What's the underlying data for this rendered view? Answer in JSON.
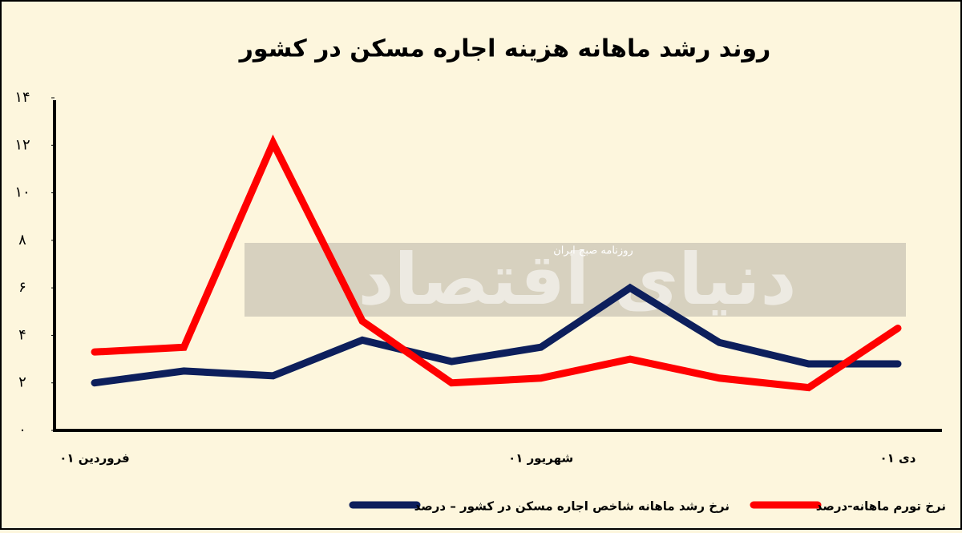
{
  "chart_data": {
    "type": "line",
    "title": "روند رشد ماهانه هزینه اجاره مسکن در کشور",
    "watermark": "دنیای اقتصاد",
    "watermark_subtitle": "روزنامه صبح ایران",
    "categories": [
      "فروردین ۰۱",
      null,
      null,
      null,
      null,
      "شهریور ۰۱",
      null,
      null,
      null,
      "دی ۰۱"
    ],
    "series": [
      {
        "name": "نرخ رشد ماهانه شاخص اجاره مسکن در کشور – درصد",
        "color": "#0d1f5c",
        "values": [
          2.0,
          2.5,
          2.3,
          3.8,
          2.9,
          3.5,
          6.0,
          3.7,
          2.8,
          2.8
        ]
      },
      {
        "name": "نرخ تورم ماهانه-درصد",
        "color": "#ff0000",
        "values": [
          3.3,
          3.5,
          12.1,
          4.6,
          2.0,
          2.2,
          3.0,
          2.2,
          1.8,
          4.3
        ]
      }
    ],
    "ylim": [
      0,
      14
    ],
    "yticks": [
      {
        "value": 0,
        "label": "۰"
      },
      {
        "value": 2,
        "label": "۲"
      },
      {
        "value": 4,
        "label": "۴"
      },
      {
        "value": 6,
        "label": "۶"
      },
      {
        "value": 8,
        "label": "۸"
      },
      {
        "value": 10,
        "label": "۱۰"
      },
      {
        "value": 12,
        "label": "۱۲"
      },
      {
        "value": 14,
        "label": "۱۴"
      }
    ],
    "grid": false,
    "legend": "bottom"
  }
}
